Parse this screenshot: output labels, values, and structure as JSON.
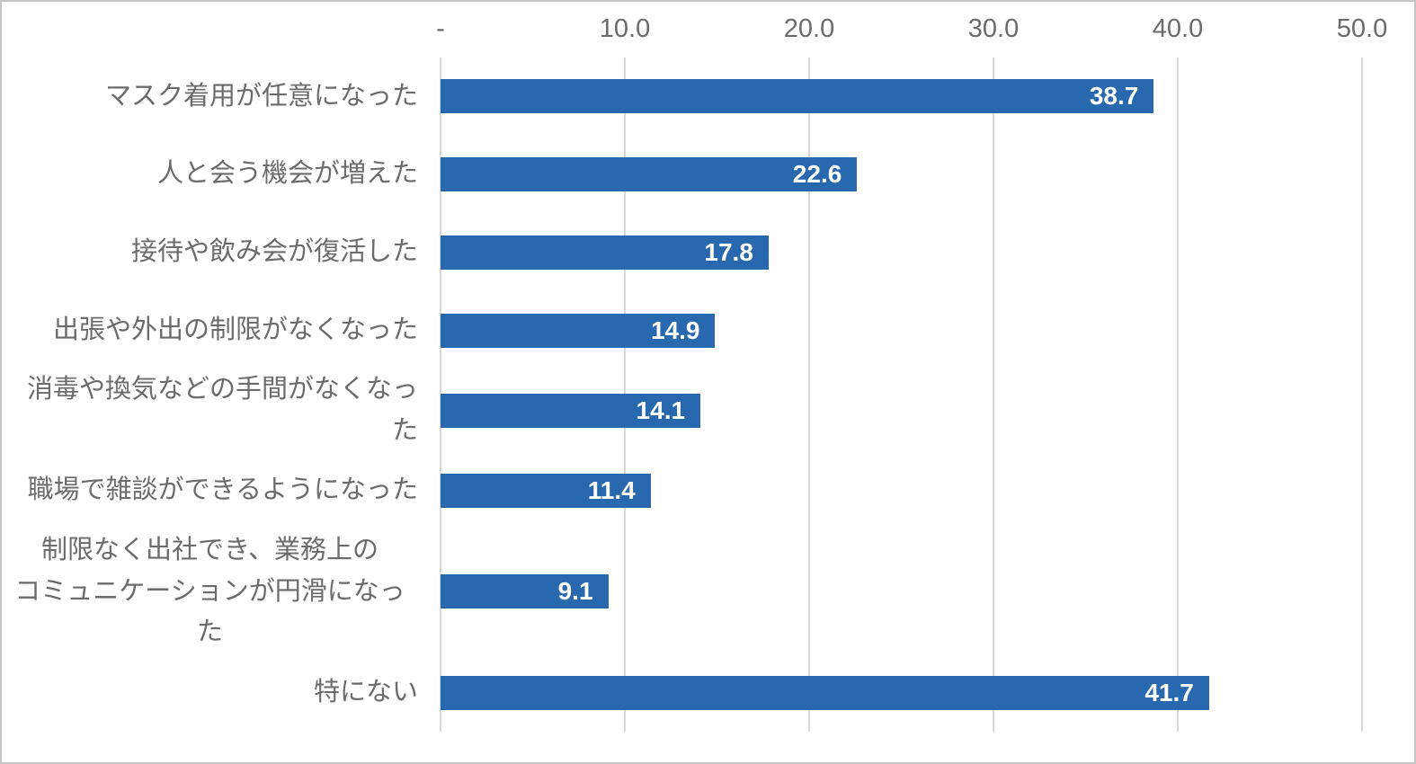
{
  "chart_data": {
    "type": "bar",
    "orientation": "horizontal",
    "title": "",
    "categories": [
      "マスク着用が任意になった",
      "人と会う機会が増えた",
      "接待や飲み会が復活した",
      "出張や外出の制限がなくなった",
      "消毒や換気などの手間がなくなった",
      "職場で雑談ができるようになった",
      "制限なく出社でき、業務上の\nコミュニケーションが円滑になった",
      "特にない"
    ],
    "values": [
      38.7,
      22.6,
      17.8,
      14.9,
      14.1,
      11.4,
      9.1,
      41.7
    ],
    "value_labels": [
      "38.7",
      "22.6",
      "17.8",
      "14.9",
      "14.1",
      "11.4",
      "9.1",
      "41.7"
    ],
    "xlabel": "",
    "ylabel": "",
    "xlim": [
      0,
      50
    ],
    "x_ticks": [
      {
        "value": 0,
        "label": "-"
      },
      {
        "value": 10,
        "label": "10.0"
      },
      {
        "value": 20,
        "label": "20.0"
      },
      {
        "value": 30,
        "label": "30.0"
      },
      {
        "value": 40,
        "label": "40.0"
      },
      {
        "value": 50,
        "label": "50.0"
      }
    ],
    "grid": true,
    "legend_position": "none",
    "style": {
      "bar_color": "#2768AE",
      "value_label_color": "#FFFFFF",
      "category_label_color": "#6B6B6B",
      "tick_label_color": "#6B6B6B",
      "gridline_color": "#D8D8D8",
      "frame_border_color": "#C5C5C5",
      "background_color": "#FFFFFF"
    }
  }
}
